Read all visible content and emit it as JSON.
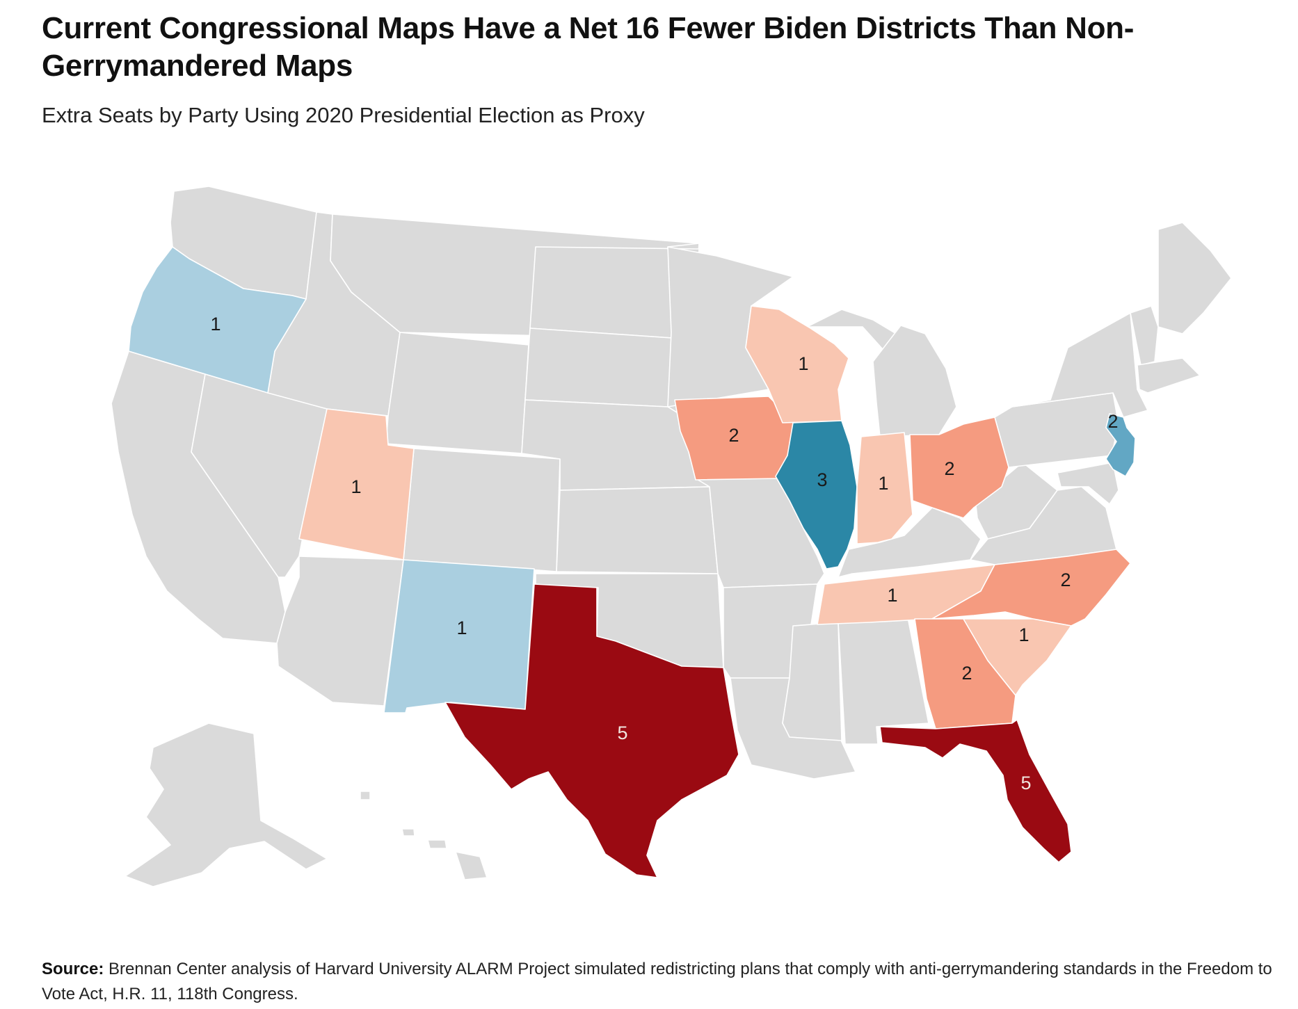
{
  "header": {
    "title": "Current Congressional Maps Have a Net 16 Fewer Biden Districts Than Non-Gerrymandered Maps",
    "subtitle": "Extra Seats by Party Using 2020 Presidential Election as Proxy"
  },
  "map": {
    "colors": {
      "neutral": "#dadada",
      "dem_1": "#aacfe0",
      "dem_2": "#62a7c4",
      "dem_3": "#2b87a6",
      "rep_1": "#f9c6b1",
      "rep_2": "#f59b80",
      "rep_5": "#9a0a12",
      "label_dark": "#1a1a1a",
      "label_light": "#f2e6e0"
    },
    "states": [
      {
        "code": "OR",
        "party": "dem",
        "seats": "1"
      },
      {
        "code": "UT",
        "party": "rep",
        "seats": "1"
      },
      {
        "code": "NM",
        "party": "dem",
        "seats": "1"
      },
      {
        "code": "TX",
        "party": "rep",
        "seats": "5"
      },
      {
        "code": "IA",
        "party": "rep",
        "seats": "2"
      },
      {
        "code": "WI",
        "party": "rep",
        "seats": "1"
      },
      {
        "code": "IL",
        "party": "dem",
        "seats": "3"
      },
      {
        "code": "IN",
        "party": "rep",
        "seats": "1"
      },
      {
        "code": "OH",
        "party": "rep",
        "seats": "2"
      },
      {
        "code": "TN",
        "party": "rep",
        "seats": "1"
      },
      {
        "code": "NC",
        "party": "rep",
        "seats": "2"
      },
      {
        "code": "SC",
        "party": "rep",
        "seats": "1"
      },
      {
        "code": "GA",
        "party": "rep",
        "seats": "2"
      },
      {
        "code": "FL",
        "party": "rep",
        "seats": "5"
      },
      {
        "code": "NJ",
        "party": "dem",
        "seats": "2"
      }
    ]
  },
  "source": {
    "label": "Source:",
    "text": "Brennan Center analysis of Harvard University ALARM Project simulated redistricting plans that comply with anti-gerrymandering standards in the Freedom to Vote Act, H.R. 11, 118th Congress."
  }
}
